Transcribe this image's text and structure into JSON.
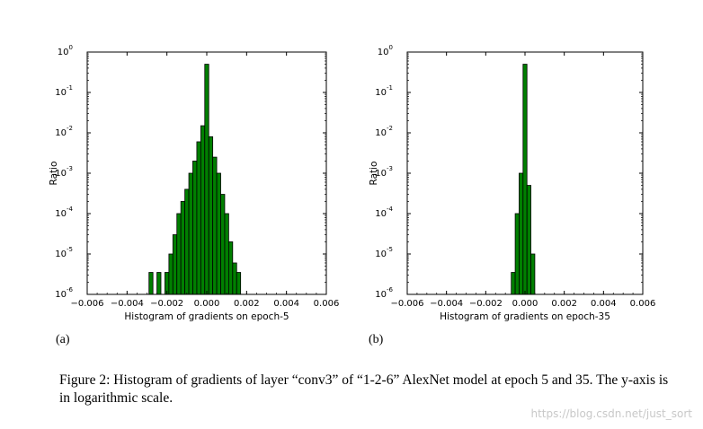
{
  "chart_data": [
    {
      "type": "bar",
      "subfigure_label": "(a)",
      "xlabel": "Histogram of gradients on epoch-5",
      "ylabel": "Ratio",
      "xlim": [
        -0.006,
        0.006
      ],
      "ylim": [
        1e-06,
        1
      ],
      "yscale": "log",
      "xticks": [
        "−0.006",
        "−0.004",
        "−0.002",
        "0.000",
        "0.002",
        "0.004",
        "0.006"
      ],
      "yticks": [
        {
          "base": "10",
          "exp": "-6"
        },
        {
          "base": "10",
          "exp": "-5"
        },
        {
          "base": "10",
          "exp": "-4"
        },
        {
          "base": "10",
          "exp": "-3"
        },
        {
          "base": "10",
          "exp": "-2"
        },
        {
          "base": "10",
          "exp": "-1"
        },
        {
          "base": "10",
          "exp": "0"
        }
      ],
      "bar_width": 0.0002,
      "bar_color": "#007f00",
      "grid": false,
      "bars": [
        {
          "x": -0.0028,
          "y": 3.5e-06
        },
        {
          "x": -0.0024,
          "y": 3.5e-06
        },
        {
          "x": -0.002,
          "y": 3.5e-06
        },
        {
          "x": -0.0018,
          "y": 1e-05
        },
        {
          "x": -0.0016,
          "y": 3e-05
        },
        {
          "x": -0.0014,
          "y": 0.0001
        },
        {
          "x": -0.0012,
          "y": 0.0002
        },
        {
          "x": -0.001,
          "y": 0.0004
        },
        {
          "x": -0.0008,
          "y": 0.001
        },
        {
          "x": -0.0006,
          "y": 0.002
        },
        {
          "x": -0.0004,
          "y": 0.006
        },
        {
          "x": -0.0002,
          "y": 0.015
        },
        {
          "x": 0.0,
          "y": 0.5
        },
        {
          "x": 0.0002,
          "y": 0.008
        },
        {
          "x": 0.0004,
          "y": 0.0025
        },
        {
          "x": 0.0006,
          "y": 0.001
        },
        {
          "x": 0.0008,
          "y": 0.0003
        },
        {
          "x": 0.001,
          "y": 0.0001
        },
        {
          "x": 0.0012,
          "y": 2e-05
        },
        {
          "x": 0.0014,
          "y": 6e-06
        },
        {
          "x": 0.0016,
          "y": 3.5e-06
        }
      ]
    },
    {
      "type": "bar",
      "subfigure_label": "(b)",
      "xlabel": "Histogram of gradients on epoch-35",
      "ylabel": "Ratio",
      "xlim": [
        -0.006,
        0.006
      ],
      "ylim": [
        1e-06,
        1
      ],
      "yscale": "log",
      "xticks": [
        "−0.006",
        "−0.004",
        "−0.002",
        "0.000",
        "0.002",
        "0.004",
        "0.006"
      ],
      "yticks": [
        {
          "base": "10",
          "exp": "-6"
        },
        {
          "base": "10",
          "exp": "-5"
        },
        {
          "base": "10",
          "exp": "-4"
        },
        {
          "base": "10",
          "exp": "-3"
        },
        {
          "base": "10",
          "exp": "-2"
        },
        {
          "base": "10",
          "exp": "-1"
        },
        {
          "base": "10",
          "exp": "0"
        }
      ],
      "bar_width": 0.0002,
      "bar_color": "#007f00",
      "grid": false,
      "bars": [
        {
          "x": -0.0006,
          "y": 3.5e-06
        },
        {
          "x": -0.0004,
          "y": 0.0001
        },
        {
          "x": -0.0002,
          "y": 0.001
        },
        {
          "x": 0.0,
          "y": 0.5
        },
        {
          "x": 0.0002,
          "y": 0.0005
        },
        {
          "x": 0.0004,
          "y": 1e-05
        }
      ]
    }
  ],
  "caption": "Figure 2: Histogram of gradients of layer “conv3” of “1-2-6” AlexNet model at epoch 5 and 35. The y-axis is in logarithmic scale.",
  "watermark": "https://blog.csdn.net/just_sort"
}
